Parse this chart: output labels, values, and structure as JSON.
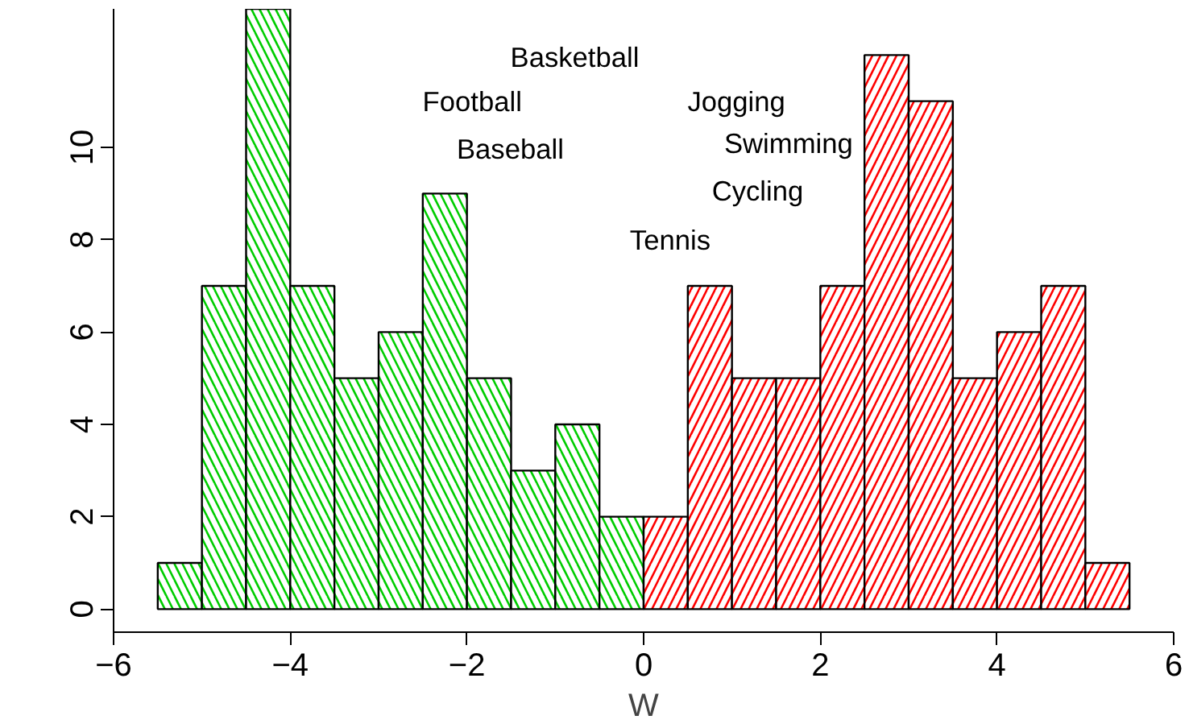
{
  "chart_data": {
    "type": "histogram",
    "xlabel": "W",
    "bins": [
      -5.5,
      -5,
      -4.5,
      -4,
      -3.5,
      -3,
      -2.5,
      -2,
      -1.5,
      -1,
      -0.5,
      0,
      0.5,
      1,
      1.5,
      2,
      2.5,
      3,
      3.5,
      4,
      4.5,
      5,
      5.5
    ],
    "values": [
      1,
      7,
      13,
      7,
      5,
      6,
      9,
      5,
      3,
      4,
      2,
      2,
      7,
      5,
      5,
      7,
      12,
      11,
      5,
      6,
      7,
      1
    ],
    "colors": [
      "#00cd00",
      "#00cd00",
      "#00cd00",
      "#00cd00",
      "#00cd00",
      "#00cd00",
      "#00cd00",
      "#00cd00",
      "#00cd00",
      "#00cd00",
      "#00cd00",
      "#ff0000",
      "#ff0000",
      "#ff0000",
      "#ff0000",
      "#ff0000",
      "#ff0000",
      "#ff0000",
      "#ff0000",
      "#ff0000",
      "#ff0000",
      "#ff0000"
    ],
    "xlim": [
      -6,
      6
    ],
    "ylim": [
      -0.5,
      13
    ],
    "xticks": [
      -6,
      -4,
      -2,
      0,
      2,
      4,
      6
    ],
    "yticks": [
      0,
      2,
      4,
      6,
      8,
      10
    ],
    "grid": false,
    "annotations": [
      "Basketball",
      "Football",
      "Baseball",
      "Jogging",
      "Swimming",
      "Cycling",
      "Tennis"
    ]
  }
}
